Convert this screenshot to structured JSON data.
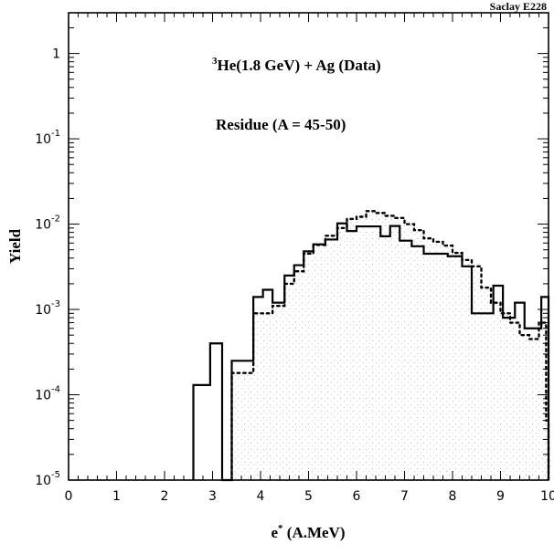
{
  "chart_data": {
    "type": "line",
    "corner_label": "Saclay E228",
    "annotations": [
      {
        "sup": "3",
        "text": "He(1.8 GeV) + Ag (Data)"
      },
      {
        "sup": "",
        "text": "Residue (A = 45-50)"
      }
    ],
    "ylabel": "Yield",
    "xlabel_main": "e",
    "xlabel_sup": "*",
    "xlabel_unit": " (A.MeV)",
    "xlim": [
      0,
      10
    ],
    "ylim": [
      1e-05,
      3
    ],
    "y_scale": "log",
    "x_ticks": [
      "0",
      "1",
      "2",
      "3",
      "4",
      "5",
      "6",
      "7",
      "8",
      "9",
      "10"
    ],
    "y_ticks": [
      {
        "value": 1,
        "base": "1",
        "exp": ""
      },
      {
        "value": 0.1,
        "base": "10",
        "exp": "-1"
      },
      {
        "value": 0.01,
        "base": "10",
        "exp": "-2"
      },
      {
        "value": 0.001,
        "base": "10",
        "exp": "-3"
      },
      {
        "value": 0.0001,
        "base": "10",
        "exp": "-4"
      },
      {
        "value": 1e-05,
        "base": "10",
        "exp": "-5"
      }
    ],
    "grid": false,
    "series": [
      {
        "style": "solid-histogram",
        "bins": [
          [
            2.6,
            2.95,
            0.00013
          ],
          [
            2.95,
            3.2,
            0.0004
          ],
          [
            3.2,
            3.4,
            1e-05
          ],
          [
            3.4,
            3.85,
            0.00025
          ],
          [
            3.85,
            4.05,
            0.0014
          ],
          [
            4.05,
            4.25,
            0.0017
          ],
          [
            4.25,
            4.5,
            0.0012
          ],
          [
            4.5,
            4.7,
            0.0025
          ],
          [
            4.7,
            4.9,
            0.0033
          ],
          [
            4.9,
            5.1,
            0.0048
          ],
          [
            5.1,
            5.35,
            0.0058
          ],
          [
            5.35,
            5.6,
            0.0066
          ],
          [
            5.6,
            5.8,
            0.0102
          ],
          [
            5.8,
            6.0,
            0.0083
          ],
          [
            6.0,
            6.5,
            0.0094
          ],
          [
            6.5,
            6.7,
            0.0072
          ],
          [
            6.7,
            6.9,
            0.0095
          ],
          [
            6.9,
            7.15,
            0.0064
          ],
          [
            7.15,
            7.4,
            0.0055
          ],
          [
            7.4,
            7.9,
            0.0045
          ],
          [
            7.9,
            8.2,
            0.0042
          ],
          [
            8.2,
            8.4,
            0.0032
          ],
          [
            8.4,
            8.85,
            0.0009
          ],
          [
            8.85,
            9.05,
            0.0019
          ],
          [
            9.05,
            9.3,
            0.0008
          ],
          [
            9.3,
            9.5,
            0.0012
          ],
          [
            9.5,
            9.85,
            0.0006
          ],
          [
            9.85,
            10.0,
            0.0014
          ]
        ]
      },
      {
        "style": "dotted-histogram",
        "bins": [
          [
            3.4,
            3.85,
            0.00018
          ],
          [
            3.85,
            4.25,
            0.0009
          ],
          [
            4.25,
            4.5,
            0.0011
          ],
          [
            4.5,
            4.7,
            0.002
          ],
          [
            4.7,
            4.9,
            0.0028
          ],
          [
            4.9,
            5.1,
            0.0045
          ],
          [
            5.1,
            5.35,
            0.0057
          ],
          [
            5.35,
            5.6,
            0.0073
          ],
          [
            5.6,
            5.8,
            0.009
          ],
          [
            5.8,
            6.0,
            0.0115
          ],
          [
            6.0,
            6.2,
            0.0122
          ],
          [
            6.2,
            6.4,
            0.0142
          ],
          [
            6.4,
            6.6,
            0.0135
          ],
          [
            6.6,
            6.8,
            0.0125
          ],
          [
            6.8,
            7.0,
            0.0118
          ],
          [
            7.0,
            7.2,
            0.01
          ],
          [
            7.2,
            7.4,
            0.0085
          ],
          [
            7.4,
            7.6,
            0.0068
          ],
          [
            7.6,
            7.8,
            0.0062
          ],
          [
            7.8,
            8.0,
            0.0056
          ],
          [
            8.0,
            8.2,
            0.0046
          ],
          [
            8.2,
            8.4,
            0.0038
          ],
          [
            8.4,
            8.6,
            0.0032
          ],
          [
            8.6,
            8.8,
            0.0018
          ],
          [
            8.8,
            9.0,
            0.0012
          ],
          [
            9.0,
            9.2,
            0.0009
          ],
          [
            9.2,
            9.4,
            0.0007
          ],
          [
            9.4,
            9.6,
            0.0005
          ],
          [
            9.6,
            9.8,
            0.00045
          ],
          [
            9.8,
            9.95,
            0.0007
          ],
          [
            9.95,
            10.0,
            5e-05
          ]
        ]
      }
    ]
  }
}
